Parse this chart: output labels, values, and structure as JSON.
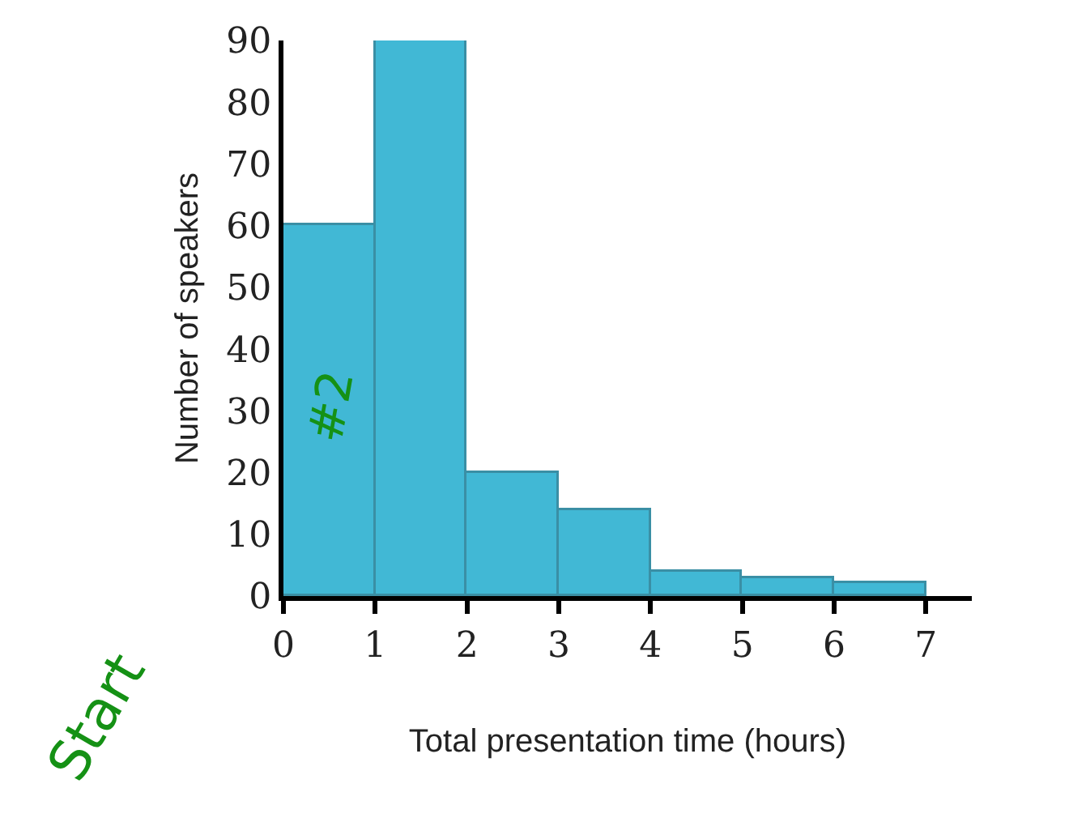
{
  "chart_data": {
    "type": "histogram",
    "xlabel": "Total presentation time (hours)",
    "ylabel": "Number of speakers",
    "bins": [
      0,
      1,
      2,
      3,
      4,
      5,
      6,
      7
    ],
    "values": [
      60,
      90,
      20,
      14,
      4,
      3,
      2
    ],
    "color": "#41b8d5",
    "xlim": [
      0,
      7.5
    ],
    "xticks": [
      0,
      1,
      2,
      3,
      4,
      5,
      6,
      7
    ],
    "ylim": [
      0,
      90
    ],
    "yticks": [
      0,
      10,
      20,
      30,
      40,
      50,
      60,
      70,
      80,
      90
    ],
    "annotations": [
      "Start",
      "#2"
    ]
  }
}
